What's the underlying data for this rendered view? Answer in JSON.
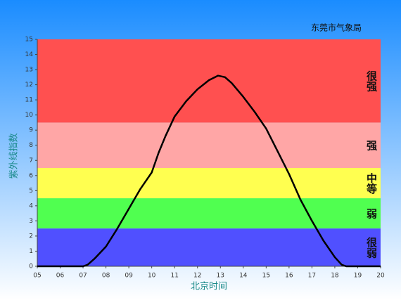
{
  "chart_data": {
    "type": "line",
    "source": "东莞市气象局",
    "x_label": "北京时间",
    "y_label": "紫外线指数",
    "x": [
      5,
      6,
      7,
      7.2,
      7.5,
      8,
      8.5,
      9,
      9.5,
      10,
      10.3,
      10.6,
      11,
      11.5,
      12,
      12.5,
      12.9,
      13.2,
      13.5,
      14,
      14.5,
      15,
      15.5,
      16,
      16.5,
      17,
      17.5,
      18,
      18.3,
      18.5,
      20
    ],
    "series": [
      {
        "color": "#000000",
        "values": [
          0,
          0,
          0,
          0.1,
          0.5,
          1.3,
          2.5,
          3.8,
          5.1,
          6.2,
          7.5,
          8.6,
          9.9,
          10.9,
          11.7,
          12.3,
          12.6,
          12.5,
          12.1,
          11.2,
          10.2,
          9.1,
          7.6,
          6.1,
          4.4,
          3.0,
          1.7,
          0.6,
          0.1,
          0,
          0
        ]
      }
    ],
    "bands": [
      {
        "from": 0,
        "to": 2.5,
        "color": "#5050ff",
        "label": "很弱"
      },
      {
        "from": 2.5,
        "to": 4.5,
        "color": "#50ff50",
        "label": "弱"
      },
      {
        "from": 4.5,
        "to": 6.5,
        "color": "#ffff50",
        "label": "中等"
      },
      {
        "from": 6.5,
        "to": 9.5,
        "color": "#ffa6a6",
        "label": "强"
      },
      {
        "from": 9.5,
        "to": 15,
        "color": "#ff5050",
        "label": "很强"
      }
    ],
    "xlim": [
      5,
      20
    ],
    "ylim": [
      0,
      15
    ],
    "xticks": [
      {
        "value": 5,
        "label": "05"
      },
      {
        "value": 6,
        "label": "06"
      },
      {
        "value": 7,
        "label": "07"
      },
      {
        "value": 8,
        "label": "08"
      },
      {
        "value": 9,
        "label": "09"
      },
      10,
      11,
      12,
      13,
      14,
      15,
      16,
      17,
      18,
      19,
      20
    ],
    "yticks": [
      0,
      1,
      2,
      3,
      4,
      5,
      6,
      7,
      8,
      9,
      10,
      11,
      12,
      13,
      14,
      15
    ]
  }
}
